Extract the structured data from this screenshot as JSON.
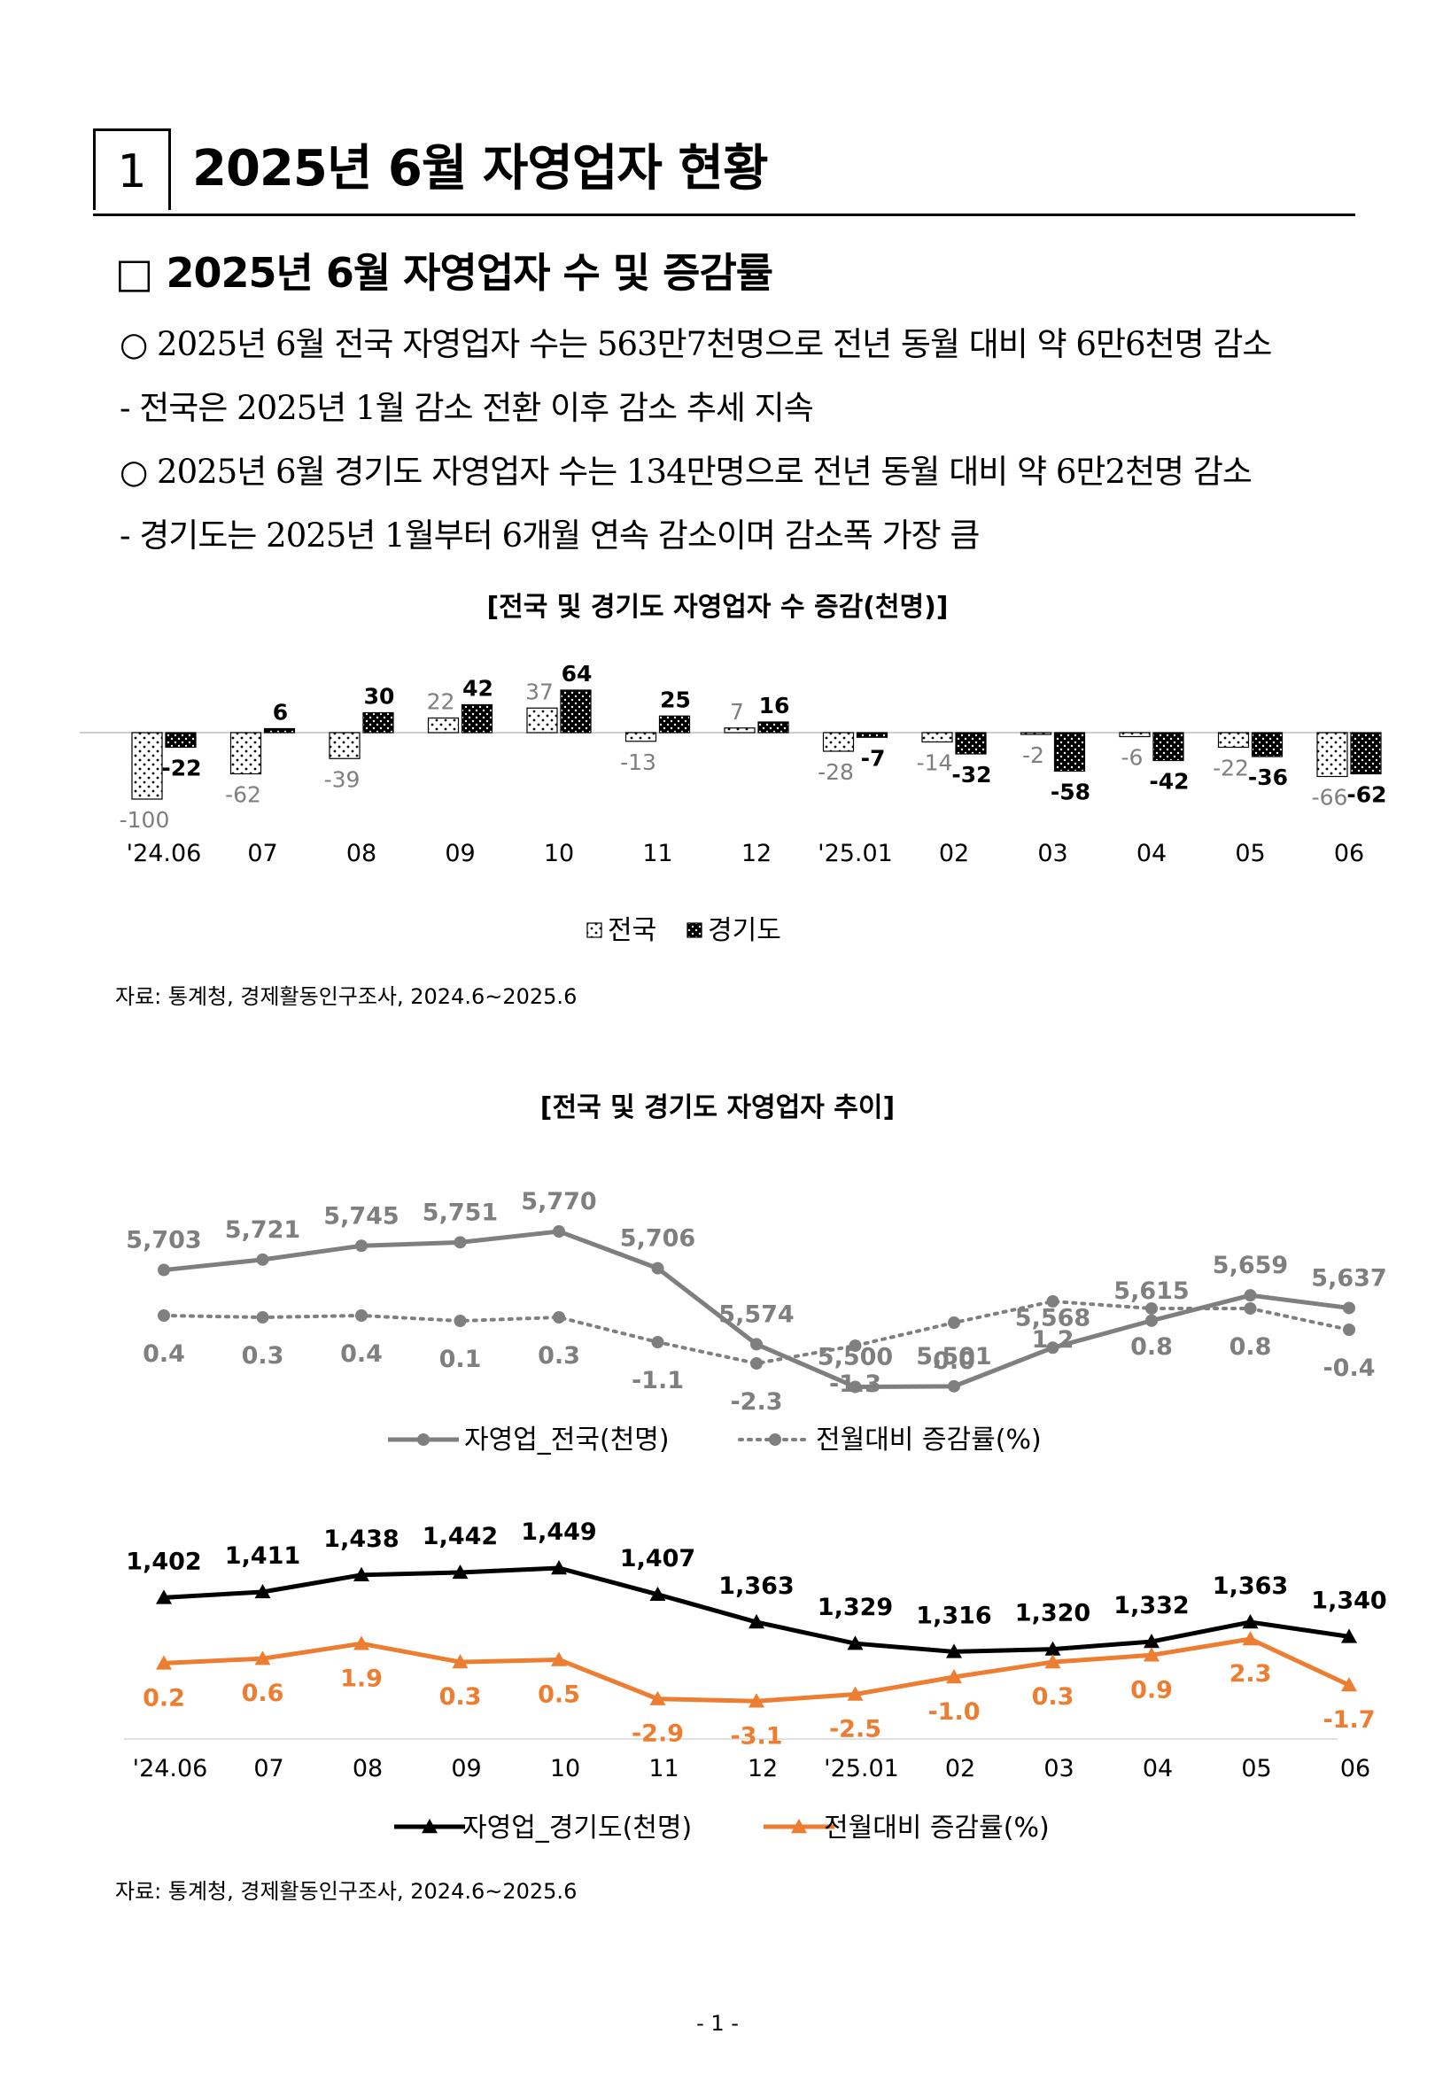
{
  "section": {
    "number": "1",
    "title": "2025년 6월 자영업자 현황"
  },
  "subsection": {
    "title": "□ 2025년 6월 자영업자 수 및 증감률"
  },
  "paragraphs": [
    "○ 2025년 6월 전국 자영업자 수는 563만7천명으로 전년 동월 대비 약 6만6천명 감소",
    " - 전국은 2025년 1월 감소 전환 이후 감소 추세 지속",
    "○ 2025년 6월 경기도 자영업자 수는 134만명으로 전년 동월 대비 약 6만2천명 감소",
    " - 경기도는 2025년 1월부터 6개월 연속 감소이며 감소폭 가장 큼"
  ],
  "chart1": {
    "title": "[전국 및 경기도 자영업자 수 증감(천명)]",
    "source": "자료: 통계청, 경제활동인구조사, 2024.6~2025.6"
  },
  "chart2": {
    "title": "[전국 및 경기도 자영업자 추이]",
    "source": "자료: 통계청, 경제활동인구조사, 2024.6~2025.6"
  },
  "page_number": "- 1 -",
  "colors": {
    "national": "#7f7f7f",
    "gyeonggi": "#000000",
    "rate2": "#ed7d31"
  },
  "chart_data": [
    {
      "type": "bar",
      "categories": [
        "'24.06",
        "07",
        "08",
        "09",
        "10",
        "11",
        "12",
        "'25.01",
        "02",
        "03",
        "04",
        "05",
        "06"
      ],
      "series": [
        {
          "name": "전국",
          "values": [
            -100,
            -62,
            -39,
            22,
            37,
            -13,
            7,
            -28,
            -14,
            -2,
            -6,
            -22,
            -66
          ]
        },
        {
          "name": "경기도",
          "values": [
            -22,
            6,
            30,
            42,
            64,
            25,
            16,
            -7,
            -32,
            -58,
            -42,
            -36,
            -62
          ]
        }
      ],
      "title": "[전국 및 경기도 자영업자 수 증감(천명)]",
      "legend": [
        "전국",
        "경기도"
      ]
    },
    {
      "type": "line",
      "categories": [
        "'24.06",
        "07",
        "08",
        "09",
        "10",
        "11",
        "12",
        "'25.01",
        "02",
        "03",
        "04",
        "05",
        "06"
      ],
      "series": [
        {
          "name": "자영업_전국(천명)",
          "values": [
            5703,
            5721,
            5745,
            5751,
            5770,
            5706,
            5574,
            5500,
            5501,
            5568,
            5615,
            5659,
            5637
          ],
          "labels": [
            "5,703",
            "5,721",
            "5,745",
            "5,751",
            "5,770",
            "5,706",
            "5,574",
            "5,500",
            "5,501",
            "5,568",
            "5,615",
            "5,659",
            "5,637"
          ]
        },
        {
          "name": "전월대비 증감률(%)",
          "values": [
            0.4,
            0.3,
            0.4,
            0.1,
            0.3,
            -1.1,
            -2.3,
            -1.3,
            0.0,
            1.2,
            0.8,
            0.8,
            -0.4
          ],
          "labels": [
            "0.4",
            "0.3",
            "0.4",
            "0.1",
            "0.3",
            "-1.1",
            "-2.3",
            "-1.3",
            "0.0",
            "1.2",
            "0.8",
            "0.8",
            "-0.4"
          ]
        }
      ],
      "title": "[전국 및 경기도 자영업자 추이]"
    },
    {
      "type": "line",
      "categories": [
        "'24.06",
        "07",
        "08",
        "09",
        "10",
        "11",
        "12",
        "'25.01",
        "02",
        "03",
        "04",
        "05",
        "06"
      ],
      "series": [
        {
          "name": "자영업_경기도(천명)",
          "values": [
            1402,
            1411,
            1438,
            1442,
            1449,
            1407,
            1363,
            1329,
            1316,
            1320,
            1332,
            1363,
            1340
          ],
          "labels": [
            "1,402",
            "1,411",
            "1,438",
            "1,442",
            "1,449",
            "1,407",
            "1,363",
            "1,329",
            "1,316",
            "1,320",
            "1,332",
            "1,363",
            "1,340"
          ]
        },
        {
          "name": "전월대비 증감률(%)",
          "values": [
            0.2,
            0.6,
            1.9,
            0.3,
            0.5,
            -2.9,
            -3.1,
            -2.5,
            -1.0,
            0.3,
            0.9,
            2.3,
            -1.7
          ],
          "labels": [
            "0.2",
            "0.6",
            "1.9",
            "0.3",
            "0.5",
            "-2.9",
            "-3.1",
            "-2.5",
            "-1.0",
            "0.3",
            "0.9",
            "2.3",
            "-1.7"
          ]
        }
      ]
    }
  ]
}
